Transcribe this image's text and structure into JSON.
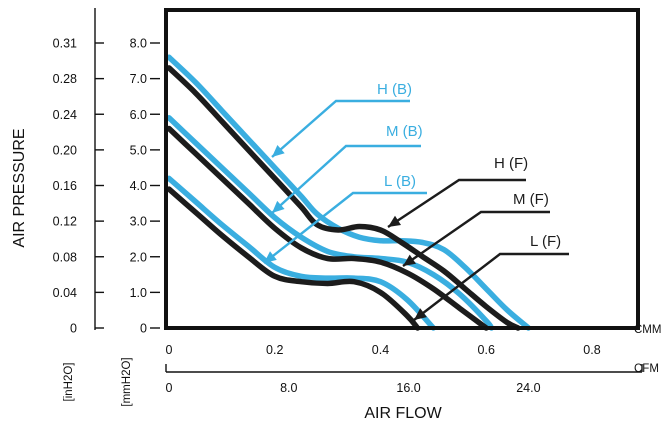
{
  "chart_data": {
    "type": "line",
    "ylabel": "AIR PRESSURE",
    "xlabel": "AIR FLOW",
    "y_units": [
      "[inH2O]",
      "[mmH2O]"
    ],
    "x_units": [
      "CMM",
      "CFM"
    ],
    "xlim": [
      0,
      0.8
    ],
    "ylim_mmH2O": [
      0,
      8.0
    ],
    "ticks": {
      "inH2O": [
        "0",
        "0.04",
        "0.08",
        "0.12",
        "0.16",
        "0.20",
        "0.24",
        "0.28",
        "0.31"
      ],
      "mmH2O": [
        "0",
        "1.0",
        "2.0",
        "3.0",
        "4.0",
        "5.0",
        "6.0",
        "7.0",
        "8.0"
      ],
      "cmm": [
        "0",
        "0.2",
        "0.4",
        "0.6",
        "0.8"
      ],
      "cfm": [
        "0",
        "8.0",
        "16.0",
        "24.0"
      ]
    },
    "colors": {
      "H (B)": "#3aaee0",
      "M (B)": "#3aaee0",
      "L (B)": "#3aaee0",
      "H (F)": "#1c1c1c",
      "M (F)": "#1c1c1c",
      "L (F)": "#1c1c1c"
    },
    "series": [
      {
        "name": "H (B)",
        "x": [
          0,
          0.05,
          0.1,
          0.15,
          0.2,
          0.25,
          0.28,
          0.32,
          0.36,
          0.4,
          0.44,
          0.48,
          0.52,
          0.56,
          0.6,
          0.64,
          0.68
        ],
        "y": [
          7.6,
          6.9,
          6.1,
          5.3,
          4.5,
          3.7,
          3.2,
          2.8,
          2.55,
          2.45,
          2.45,
          2.4,
          2.2,
          1.7,
          1.1,
          0.5,
          0.0
        ]
      },
      {
        "name": "H (F)",
        "x": [
          0,
          0.05,
          0.1,
          0.15,
          0.2,
          0.25,
          0.28,
          0.32,
          0.36,
          0.4,
          0.44,
          0.48,
          0.52,
          0.56,
          0.6,
          0.64,
          0.66
        ],
        "y": [
          7.3,
          6.6,
          5.8,
          5.0,
          4.2,
          3.4,
          2.9,
          2.75,
          2.85,
          2.75,
          2.4,
          2.0,
          1.6,
          1.1,
          0.6,
          0.15,
          0.0
        ]
      },
      {
        "name": "M (B)",
        "x": [
          0,
          0.05,
          0.1,
          0.15,
          0.2,
          0.25,
          0.3,
          0.35,
          0.4,
          0.45,
          0.5,
          0.55,
          0.6,
          0.61
        ],
        "y": [
          5.9,
          5.2,
          4.5,
          3.8,
          3.1,
          2.55,
          2.15,
          2.0,
          1.95,
          1.85,
          1.5,
          0.95,
          0.2,
          0.0
        ]
      },
      {
        "name": "M (F)",
        "x": [
          0,
          0.05,
          0.1,
          0.15,
          0.2,
          0.25,
          0.3,
          0.35,
          0.4,
          0.45,
          0.5,
          0.55,
          0.6
        ],
        "y": [
          5.6,
          4.9,
          4.2,
          3.5,
          2.8,
          2.25,
          1.95,
          1.95,
          1.85,
          1.55,
          1.1,
          0.55,
          0.0
        ]
      },
      {
        "name": "L (B)",
        "x": [
          0,
          0.05,
          0.1,
          0.15,
          0.2,
          0.25,
          0.3,
          0.35,
          0.4,
          0.45,
          0.5
        ],
        "y": [
          4.2,
          3.55,
          2.9,
          2.3,
          1.7,
          1.45,
          1.4,
          1.4,
          1.3,
          0.8,
          0.0
        ]
      },
      {
        "name": "L (F)",
        "x": [
          0,
          0.05,
          0.1,
          0.15,
          0.2,
          0.25,
          0.3,
          0.35,
          0.4,
          0.45,
          0.47
        ],
        "y": [
          3.9,
          3.25,
          2.6,
          2.0,
          1.45,
          1.3,
          1.25,
          1.3,
          1.0,
          0.35,
          0.0
        ]
      }
    ]
  }
}
